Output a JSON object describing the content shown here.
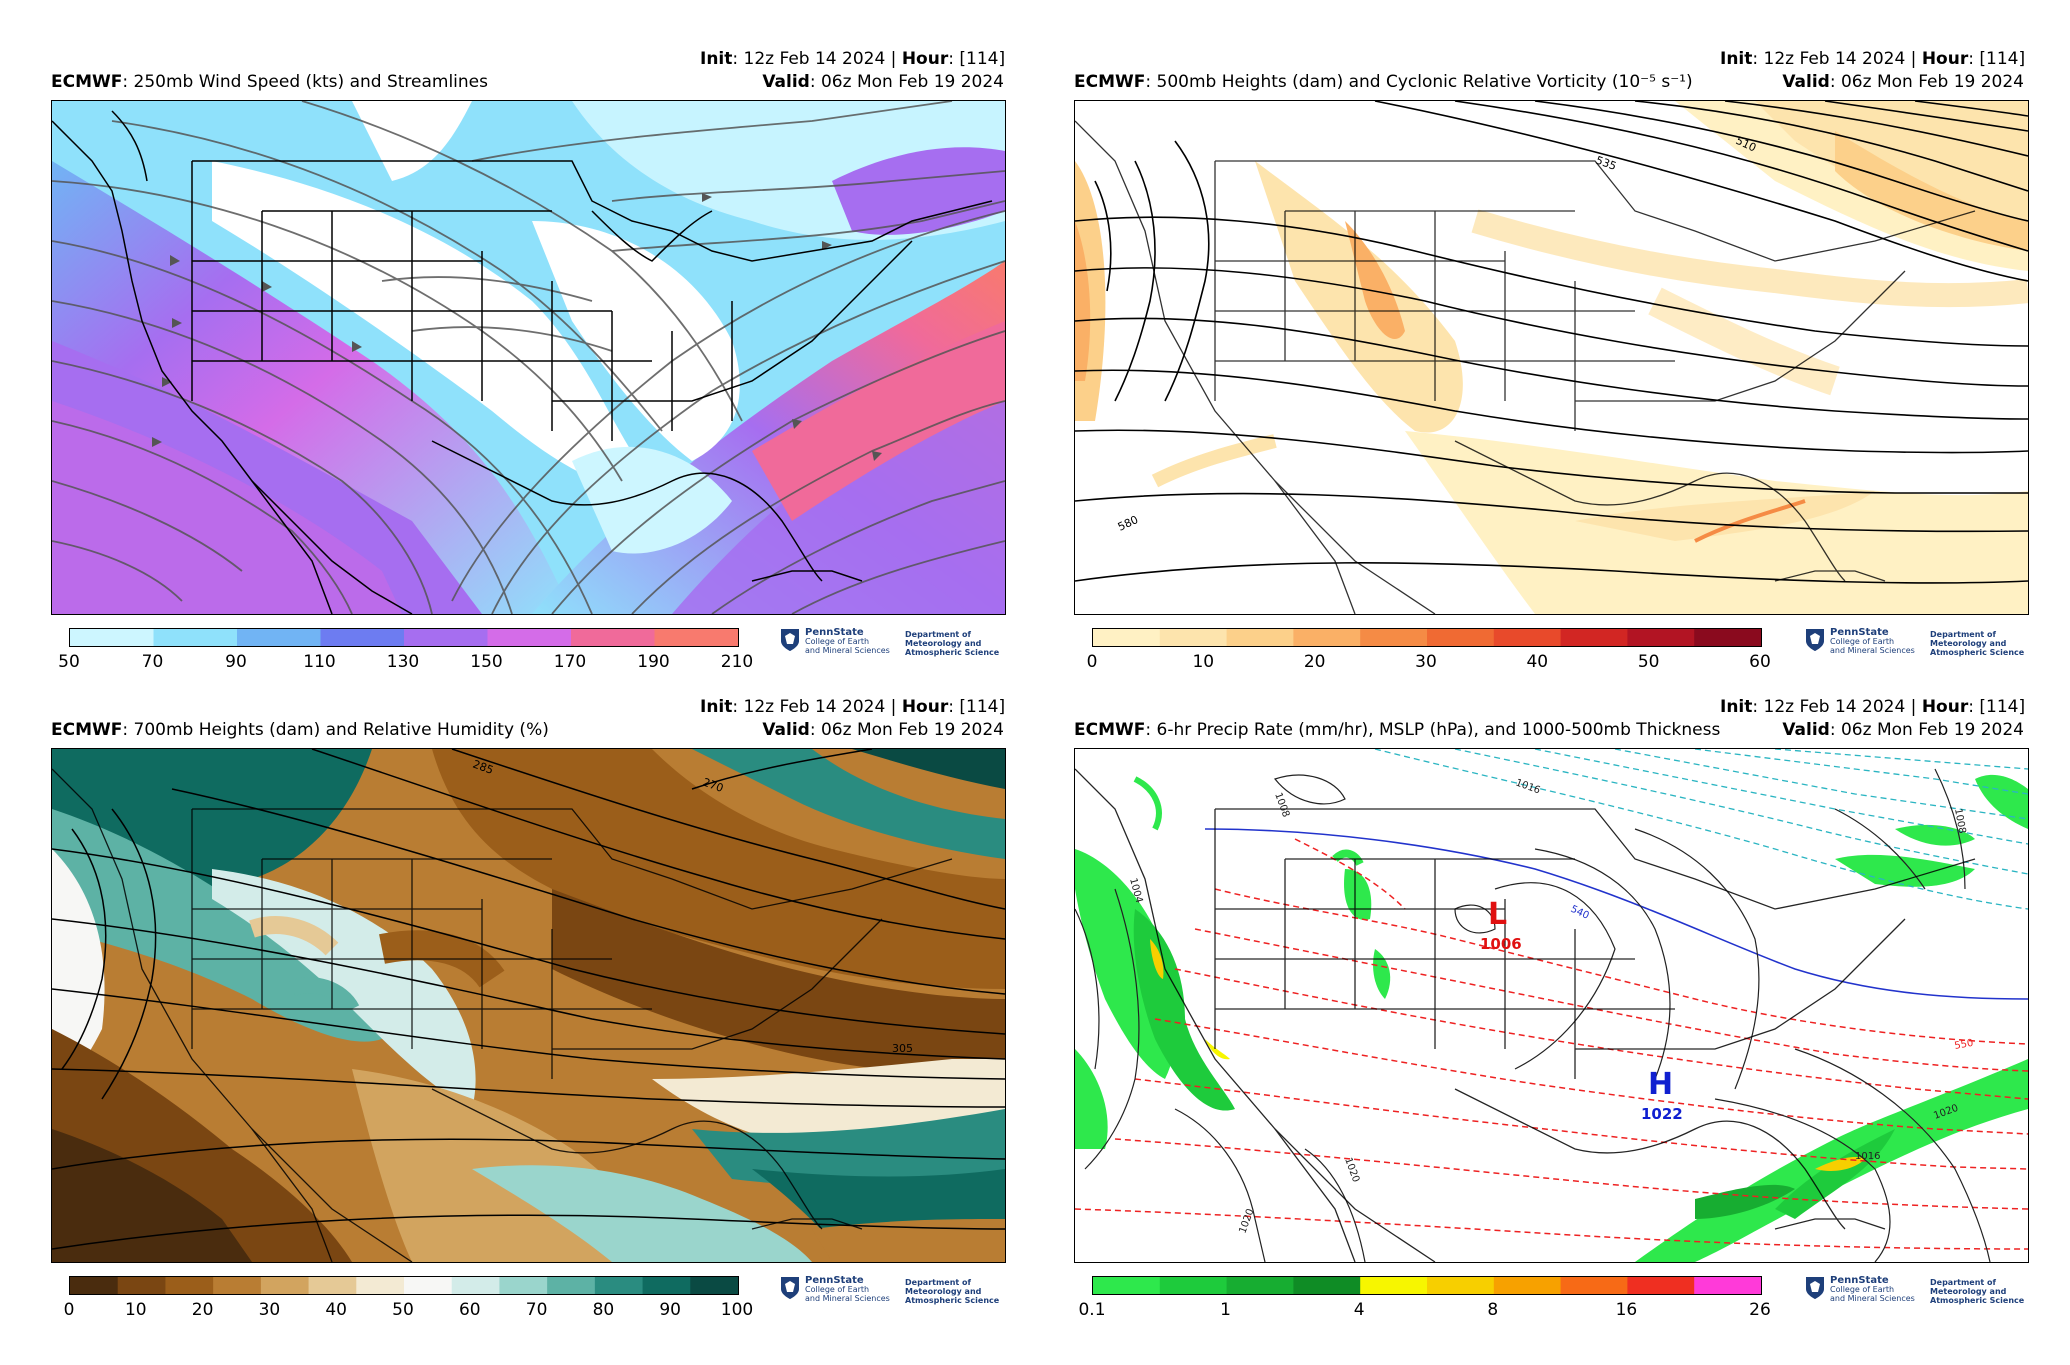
{
  "colors": {
    "wind": [
      "#cdf6ff",
      "#8fe1fb",
      "#71b4f4",
      "#6d7cf1",
      "#a66ef0",
      "#d46ce8",
      "#f06a9a",
      "#f87a6e"
    ],
    "vort": [
      "#fff1c4",
      "#fde4ad",
      "#fcd08a",
      "#fab066",
      "#f58b45",
      "#f06a33",
      "#e84a2b",
      "#d22623",
      "#b21423",
      "#8a0a1e"
    ],
    "rh": [
      "#4a2c0e",
      "#7a4612",
      "#9b5e1a",
      "#b97d33",
      "#d2a45f",
      "#e5c996",
      "#f3ead3",
      "#f7f7f5",
      "#d3ece9",
      "#9ad5cc",
      "#5db2a5",
      "#2a8c80",
      "#0f6b60",
      "#0a4a43"
    ],
    "precip": [
      "#2ee84c",
      "#1ecb3c",
      "#17ad31",
      "#0f8c25",
      "#f7f600",
      "#f7cf00",
      "#f7a100",
      "#f76a16",
      "#ef2f21",
      "#ff3ad9"
    ],
    "pinecolor": "#1e3f7a"
  },
  "panels": [
    {
      "init_label": "Init",
      "init_value": ": 12z Feb 14 2024 | ",
      "hour_label": "Hour",
      "hour_value": ": [114]",
      "model": "ECMWF",
      "title": ": 250mb Wind Speed (kts) and Streamlines",
      "valid_label": "Valid",
      "valid_value": ": 06z Mon Feb 19 2024",
      "ticks": [
        "50",
        "70",
        "90",
        "110",
        "130",
        "150",
        "170",
        "190",
        "210"
      ],
      "contour_labels": []
    },
    {
      "init_label": "Init",
      "init_value": ": 12z Feb 14 2024 | ",
      "hour_label": "Hour",
      "hour_value": ": [114]",
      "model": "ECMWF",
      "title": ": 500mb Heights (dam) and Cyclonic Relative Vorticity (10⁻⁵ s⁻¹)",
      "valid_label": "Valid",
      "valid_value": ": 06z Mon Feb 19 2024",
      "ticks": [
        "0",
        "10",
        "20",
        "30",
        "40",
        "50",
        "60"
      ],
      "contour_labels": [
        "535",
        "510",
        "580"
      ]
    },
    {
      "init_label": "Init",
      "init_value": ": 12z Feb 14 2024 | ",
      "hour_label": "Hour",
      "hour_value": ": [114]",
      "model": "ECMWF",
      "title": ": 700mb Heights (dam) and Relative Humidity (%)",
      "valid_label": "Valid",
      "valid_value": ": 06z Mon Feb 19 2024",
      "ticks": [
        "0",
        "10",
        "20",
        "30",
        "40",
        "50",
        "60",
        "70",
        "80",
        "90",
        "100"
      ],
      "contour_labels": [
        "285",
        "270",
        "305"
      ]
    },
    {
      "init_label": "Init",
      "init_value": ": 12z Feb 14 2024 | ",
      "hour_label": "Hour",
      "hour_value": ": [114]",
      "model": "ECMWF",
      "title": ": 6-hr Precip Rate (mm/hr), MSLP (hPa), and 1000-500mb Thickness",
      "valid_label": "Valid",
      "valid_value": ": 06z Mon Feb 19 2024",
      "ticks": [
        "0.1",
        "1",
        "4",
        "8",
        "16",
        "26"
      ],
      "contour_labels": [
        "1008",
        "1016",
        "1004",
        "1020",
        "1016",
        "1020",
        "1008",
        "540",
        "550",
        "1020"
      ],
      "low": {
        "letter": "L",
        "value": "1006"
      },
      "high": {
        "letter": "H",
        "value": "1022"
      }
    }
  ],
  "logo": {
    "name": "PennState",
    "college_line1": "College of Earth",
    "college_line2": "and Mineral Sciences",
    "dept_line1": "Department of",
    "dept_line2": "Meteorology and",
    "dept_line3": "Atmospheric Science"
  }
}
